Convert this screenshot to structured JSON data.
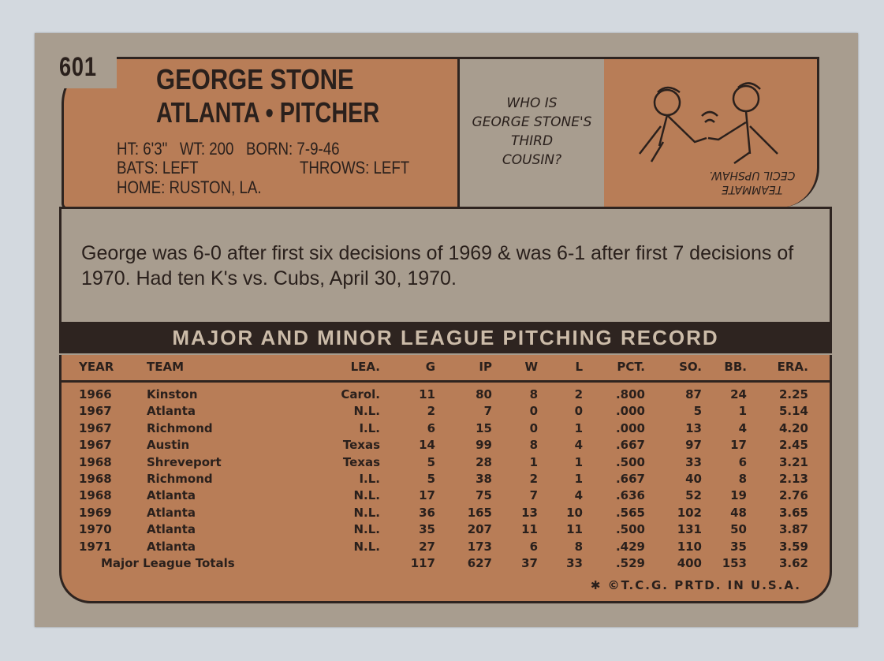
{
  "card": {
    "number": "601",
    "name": "GEORGE STONE",
    "team_position": "ATLANTA • PITCHER",
    "vitals": {
      "line1": "HT: 6'3\"   WT: 200   BORN: 7-9-46",
      "bats": "BATS: LEFT",
      "throws": "THROWS: LEFT",
      "home": "HOME: RUSTON, LA."
    },
    "cartoon": {
      "question": [
        "WHO IS",
        "GEORGE STONE'S",
        "THIRD",
        "COUSIN?"
      ],
      "answer": [
        "TEAMMATE",
        "CECIL UPSHAW."
      ]
    },
    "bio": "George was 6-0 after first six decisions of 1969 & was 6-1 after first 7 decisions of 1970. Had ten K's vs. Cubs, April 30, 1970.",
    "record_title": "MAJOR AND MINOR LEAGUE PITCHING RECORD",
    "columns": [
      "YEAR",
      "TEAM",
      "LEA.",
      "G",
      "IP",
      "W",
      "L",
      "PCT.",
      "SO.",
      "BB.",
      "ERA."
    ],
    "rows": [
      [
        "1966",
        "Kinston",
        "Carol.",
        "11",
        "80",
        "8",
        "2",
        ".800",
        "87",
        "24",
        "2.25"
      ],
      [
        "1967",
        "Atlanta",
        "N.L.",
        "2",
        "7",
        "0",
        "0",
        ".000",
        "5",
        "1",
        "5.14"
      ],
      [
        "1967",
        "Richmond",
        "I.L.",
        "6",
        "15",
        "0",
        "1",
        ".000",
        "13",
        "4",
        "4.20"
      ],
      [
        "1967",
        "Austin",
        "Texas",
        "14",
        "99",
        "8",
        "4",
        ".667",
        "97",
        "17",
        "2.45"
      ],
      [
        "1968",
        "Shreveport",
        "Texas",
        "5",
        "28",
        "1",
        "1",
        ".500",
        "33",
        "6",
        "3.21"
      ],
      [
        "1968",
        "Richmond",
        "I.L.",
        "5",
        "38",
        "2",
        "1",
        ".667",
        "40",
        "8",
        "2.13"
      ],
      [
        "1968",
        "Atlanta",
        "N.L.",
        "17",
        "75",
        "7",
        "4",
        ".636",
        "52",
        "19",
        "2.76"
      ],
      [
        "1969",
        "Atlanta",
        "N.L.",
        "36",
        "165",
        "13",
        "10",
        ".565",
        "102",
        "48",
        "3.65"
      ],
      [
        "1970",
        "Atlanta",
        "N.L.",
        "35",
        "207",
        "11",
        "11",
        ".500",
        "131",
        "50",
        "3.87"
      ],
      [
        "1971",
        "Atlanta",
        "N.L.",
        "27",
        "173",
        "6",
        "8",
        ".429",
        "110",
        "35",
        "3.59"
      ]
    ],
    "totals": {
      "label": "Major League Totals",
      "values": [
        "117",
        "627",
        "37",
        "33",
        ".529",
        "400",
        "153",
        "3.62"
      ]
    },
    "footer": "✱ ©T.C.G. PRTD. IN U.S.A."
  },
  "colors": {
    "card": "#a89d8f",
    "panel": "#b87d57",
    "ink": "#2e2420"
  }
}
